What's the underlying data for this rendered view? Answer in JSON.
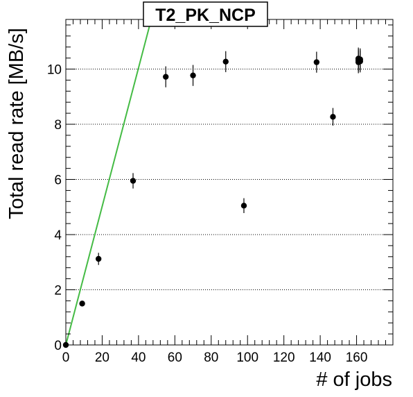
{
  "chart_data": {
    "type": "scatter",
    "title": "T2_PK_NCP",
    "xlabel": "# of jobs",
    "ylabel": "Total read rate [MB/s]",
    "xlim": [
      0,
      180
    ],
    "ylim": [
      0,
      11.8
    ],
    "xticks": [
      0,
      20,
      40,
      60,
      80,
      100,
      120,
      140,
      160
    ],
    "yticks": [
      0,
      2,
      4,
      6,
      8,
      10
    ],
    "grid": "horizontal-dotted",
    "points": [
      {
        "x": 0,
        "y": 0.0,
        "yerr": 0.05
      },
      {
        "x": 9,
        "y": 1.5,
        "yerr": 0.1
      },
      {
        "x": 18,
        "y": 3.12,
        "yerr": 0.22
      },
      {
        "x": 37,
        "y": 5.95,
        "yerr": 0.28
      },
      {
        "x": 55,
        "y": 9.72,
        "yerr": 0.38
      },
      {
        "x": 70,
        "y": 9.77,
        "yerr": 0.38
      },
      {
        "x": 88,
        "y": 10.27,
        "yerr": 0.38
      },
      {
        "x": 98,
        "y": 5.05,
        "yerr": 0.27
      },
      {
        "x": 138,
        "y": 10.25,
        "yerr": 0.38
      },
      {
        "x": 147,
        "y": 8.27,
        "yerr": 0.32
      },
      {
        "x": 161,
        "y": 10.25,
        "yerr": 0.4
      },
      {
        "x": 161,
        "y": 10.32,
        "yerr": 0.4
      },
      {
        "x": 161,
        "y": 10.38,
        "yerr": 0.4
      },
      {
        "x": 162,
        "y": 10.28,
        "yerr": 0.4
      },
      {
        "x": 162,
        "y": 10.35,
        "yerr": 0.4
      }
    ],
    "reference_line": {
      "x": [
        0,
        47
      ],
      "y": [
        0,
        11.8
      ],
      "color": "#44bb44"
    },
    "marker_color": "#000000"
  }
}
